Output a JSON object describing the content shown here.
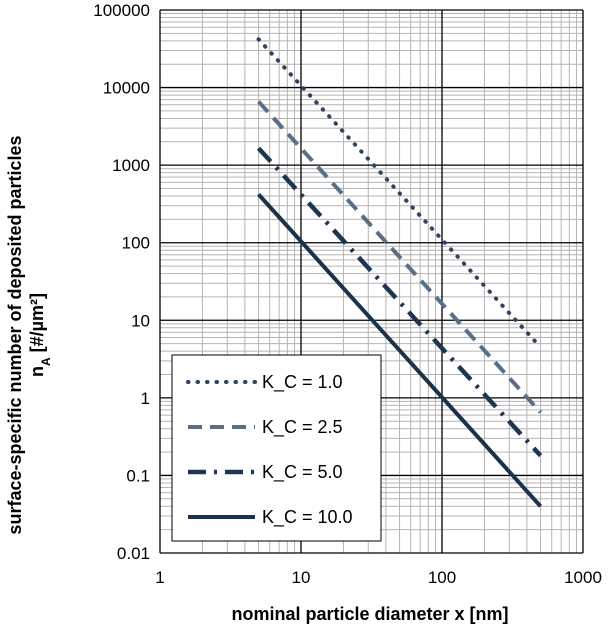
{
  "chart_data": {
    "type": "line",
    "xscale": "log",
    "yscale": "log",
    "xlim": [
      1,
      1000
    ],
    "ylim": [
      0.01,
      100000
    ],
    "xlabel": "nominal particle diameter x [nm]",
    "ylabel_line1": "surface-specific number of deposited particles",
    "ylabel_line2_main": "n",
    "ylabel_line2_sub": "A",
    "ylabel_line2_rest": " [#/µm²]",
    "x_tick_labels": [
      "1",
      "10",
      "100",
      "1000"
    ],
    "y_tick_labels": [
      "0.01",
      "0.1",
      "1",
      "10",
      "100",
      "1000",
      "10000",
      "100000"
    ],
    "grid": true,
    "legend_position": "bottom-left",
    "series": [
      {
        "name": "K_C = 1.0",
        "style": "dotted",
        "color": "#2e4460",
        "x": [
          5,
          500
        ],
        "y": [
          42000,
          4.5
        ]
      },
      {
        "name": "K_C = 2.5",
        "style": "dashed",
        "color": "#5a6f86",
        "x": [
          5,
          500
        ],
        "y": [
          6600,
          0.65
        ]
      },
      {
        "name": "K_C = 5.0",
        "style": "dash-dot",
        "color": "#1f3450",
        "x": [
          5,
          500
        ],
        "y": [
          1650,
          0.18
        ]
      },
      {
        "name": "K_C = 10.0",
        "style": "solid",
        "color": "#1d3149",
        "x": [
          5,
          500
        ],
        "y": [
          420,
          0.04
        ]
      }
    ]
  }
}
